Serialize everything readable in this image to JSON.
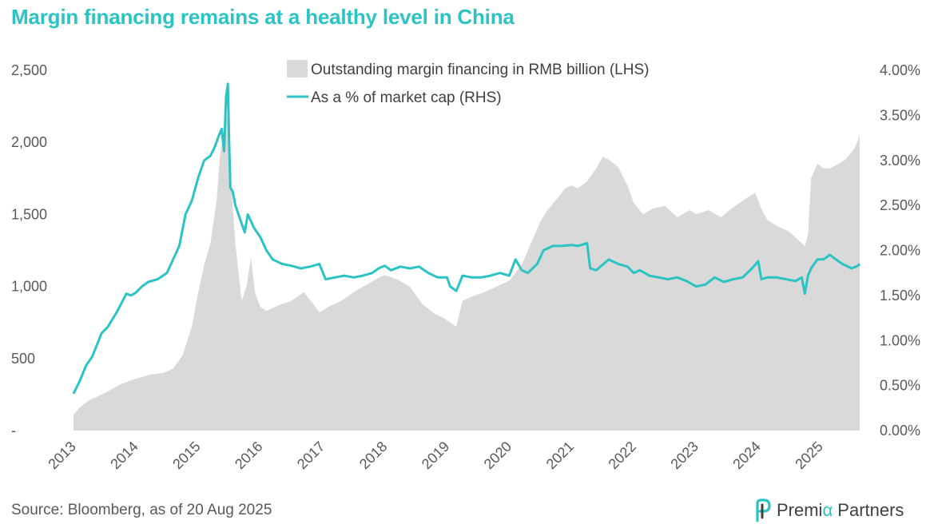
{
  "chart_data": {
    "type": "area+line",
    "title": "Margin financing remains at a healthy level in China",
    "x_start": 2013.0,
    "x_end": 2025.63,
    "x_tick_labels": [
      "2013",
      "2014",
      "2015",
      "2016",
      "2017",
      "2018",
      "2019",
      "2020",
      "2021",
      "2022",
      "2023",
      "2024",
      "2025"
    ],
    "y_left": {
      "min": 0,
      "max": 2500,
      "tick_values": [
        0,
        500,
        1000,
        1500,
        2000,
        2500
      ],
      "tick_labels": [
        "-",
        "500",
        "1,000",
        "1,500",
        "2,000",
        "2,500"
      ]
    },
    "y_right": {
      "min": 0,
      "max": 4.0,
      "tick_values": [
        0,
        0.5,
        1.0,
        1.5,
        2.0,
        2.5,
        3.0,
        3.5,
        4.0
      ],
      "tick_labels": [
        "0.00%",
        "0.50%",
        "1.00%",
        "1.50%",
        "2.00%",
        "2.50%",
        "3.00%",
        "3.50%",
        "4.00%"
      ]
    },
    "series": [
      {
        "name": "Outstanding margin financing in RMB billion (LHS)",
        "axis": "left",
        "kind": "area",
        "color": "#d9d9d9",
        "x": [
          2013.0,
          2013.1,
          2013.25,
          2013.5,
          2013.75,
          2014.0,
          2014.25,
          2014.45,
          2014.6,
          2014.75,
          2014.9,
          2015.0,
          2015.1,
          2015.2,
          2015.3,
          2015.35,
          2015.42,
          2015.46,
          2015.5,
          2015.55,
          2015.6,
          2015.7,
          2015.78,
          2015.85,
          2015.92,
          2016.0,
          2016.1,
          2016.3,
          2016.5,
          2016.7,
          2016.85,
          2016.95,
          2017.1,
          2017.3,
          2017.5,
          2017.7,
          2017.9,
          2018.0,
          2018.2,
          2018.4,
          2018.6,
          2018.8,
          2018.95,
          2019.05,
          2019.15,
          2019.25,
          2019.4,
          2019.6,
          2019.8,
          2020.0,
          2020.2,
          2020.4,
          2020.5,
          2020.6,
          2020.75,
          2020.9,
          2021.0,
          2021.1,
          2021.25,
          2021.4,
          2021.5,
          2021.6,
          2021.75,
          2021.9,
          2022.0,
          2022.15,
          2022.3,
          2022.5,
          2022.7,
          2022.9,
          2023.0,
          2023.2,
          2023.4,
          2023.6,
          2023.8,
          2023.95,
          2024.05,
          2024.15,
          2024.3,
          2024.5,
          2024.65,
          2024.75,
          2024.8,
          2024.85,
          2024.95,
          2025.05,
          2025.15,
          2025.25,
          2025.4,
          2025.55,
          2025.63
        ],
        "values": [
          110,
          160,
          210,
          260,
          320,
          360,
          390,
          400,
          430,
          520,
          720,
          950,
          1150,
          1300,
          1600,
          1900,
          2100,
          2200,
          2050,
          1600,
          1300,
          900,
          1000,
          1200,
          950,
          860,
          830,
          870,
          900,
          960,
          880,
          820,
          860,
          900,
          960,
          1010,
          1060,
          1080,
          1050,
          1000,
          880,
          810,
          780,
          750,
          720,
          900,
          930,
          960,
          1000,
          1040,
          1150,
          1350,
          1450,
          1520,
          1600,
          1680,
          1700,
          1680,
          1730,
          1820,
          1900,
          1880,
          1830,
          1700,
          1580,
          1500,
          1540,
          1560,
          1480,
          1530,
          1500,
          1530,
          1480,
          1550,
          1610,
          1650,
          1540,
          1460,
          1420,
          1380,
          1320,
          1280,
          1360,
          1750,
          1850,
          1820,
          1820,
          1840,
          1880,
          1960,
          2050
        ]
      },
      {
        "name": "As a % of market cap (RHS)",
        "axis": "right",
        "kind": "line",
        "color": "#2cc3c3",
        "x": [
          2013.0,
          2013.1,
          2013.2,
          2013.3,
          2013.45,
          2013.55,
          2013.7,
          2013.85,
          2013.92,
          2014.0,
          2014.1,
          2014.2,
          2014.35,
          2014.5,
          2014.6,
          2014.7,
          2014.8,
          2014.9,
          2015.0,
          2015.1,
          2015.2,
          2015.27,
          2015.32,
          2015.38,
          2015.42,
          2015.45,
          2015.48,
          2015.5,
          2015.52,
          2015.56,
          2015.6,
          2015.7,
          2015.75,
          2015.8,
          2015.9,
          2016.0,
          2016.1,
          2016.2,
          2016.35,
          2016.5,
          2016.65,
          2016.8,
          2016.95,
          2017.05,
          2017.2,
          2017.35,
          2017.5,
          2017.65,
          2017.8,
          2017.9,
          2018.0,
          2018.1,
          2018.25,
          2018.4,
          2018.55,
          2018.7,
          2018.85,
          2019.0,
          2019.05,
          2019.15,
          2019.25,
          2019.4,
          2019.55,
          2019.7,
          2019.85,
          2020.0,
          2020.1,
          2020.2,
          2020.3,
          2020.45,
          2020.55,
          2020.7,
          2020.85,
          2021.0,
          2021.1,
          2021.25,
          2021.3,
          2021.4,
          2021.6,
          2021.75,
          2021.9,
          2022.0,
          2022.1,
          2022.25,
          2022.4,
          2022.55,
          2022.7,
          2022.85,
          2023.0,
          2023.15,
          2023.3,
          2023.45,
          2023.6,
          2023.75,
          2023.9,
          2024.0,
          2024.05,
          2024.15,
          2024.3,
          2024.45,
          2024.6,
          2024.7,
          2024.75,
          2024.8,
          2024.85,
          2024.95,
          2025.05,
          2025.15,
          2025.25,
          2025.35,
          2025.5,
          2025.6,
          2025.63
        ],
        "values": [
          0.41,
          0.55,
          0.72,
          0.82,
          1.08,
          1.15,
          1.32,
          1.52,
          1.5,
          1.53,
          1.6,
          1.65,
          1.68,
          1.75,
          1.9,
          2.05,
          2.4,
          2.55,
          2.8,
          3.0,
          3.05,
          3.15,
          3.25,
          3.35,
          3.1,
          3.7,
          3.85,
          3.2,
          2.7,
          2.65,
          2.5,
          2.3,
          2.2,
          2.4,
          2.25,
          2.15,
          2.0,
          1.9,
          1.85,
          1.83,
          1.8,
          1.82,
          1.85,
          1.68,
          1.7,
          1.72,
          1.7,
          1.72,
          1.75,
          1.8,
          1.83,
          1.78,
          1.82,
          1.8,
          1.82,
          1.75,
          1.7,
          1.7,
          1.6,
          1.55,
          1.72,
          1.7,
          1.7,
          1.72,
          1.75,
          1.72,
          1.9,
          1.78,
          1.75,
          1.85,
          2.0,
          2.05,
          2.05,
          2.06,
          2.05,
          2.08,
          1.8,
          1.78,
          1.9,
          1.85,
          1.82,
          1.75,
          1.78,
          1.72,
          1.7,
          1.68,
          1.7,
          1.66,
          1.6,
          1.62,
          1.7,
          1.65,
          1.68,
          1.7,
          1.8,
          1.88,
          1.68,
          1.7,
          1.7,
          1.68,
          1.66,
          1.7,
          1.52,
          1.72,
          1.8,
          1.9,
          1.9,
          1.95,
          1.9,
          1.85,
          1.8,
          1.83,
          1.85
        ]
      }
    ],
    "legend_position": "top-center"
  },
  "footer": {
    "source": "Source: Bloomberg, as of 20 Aug 2025",
    "brand_prefix": "Premi",
    "brand_alpha": "α",
    "brand_suffix": " Partners"
  },
  "colors": {
    "title": "#2cc3c3",
    "line": "#2cc3c3",
    "area": "#d9d9d9"
  }
}
